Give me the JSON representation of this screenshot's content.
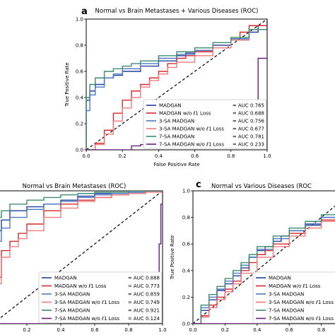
{
  "figure": {
    "panel_letters": [
      "a",
      "",
      "c"
    ]
  },
  "chart_data": [
    {
      "type": "line",
      "panel": "a",
      "title": "Normal vs Brain Metastases + Various Diseases (ROC)",
      "xlabel": "False Positive Rate",
      "ylabel": "True Positive Rate",
      "xlim": [
        0,
        1
      ],
      "ylim": [
        0,
        1
      ],
      "xticks": [
        "0.0",
        "0.2",
        "0.4",
        "0.6",
        "0.8",
        "1.0"
      ],
      "yticks": [
        "0.0",
        "0.2",
        "0.4",
        "0.6",
        "0.8",
        "1.0"
      ],
      "legend_position": "lower-right",
      "diagonal": true,
      "series": [
        {
          "name": "MADGAN",
          "auc": "= AUC 0.765",
          "color": "#1f3fa3",
          "x": [
            0,
            0,
            0.02,
            0.05,
            0.1,
            0.15,
            0.2,
            0.3,
            0.4,
            0.5,
            0.55,
            0.6,
            0.7,
            0.8,
            0.9,
            0.95,
            1.0
          ],
          "y": [
            0,
            0.38,
            0.45,
            0.5,
            0.55,
            0.57,
            0.6,
            0.64,
            0.68,
            0.72,
            0.74,
            0.76,
            0.8,
            0.84,
            0.9,
            0.95,
            1.0
          ]
        },
        {
          "name": "MADGAN w/o ℓ1 Loss",
          "auc": "= AUC 0.688",
          "color": "#d8282e",
          "x": [
            0,
            0.05,
            0.1,
            0.15,
            0.2,
            0.25,
            0.3,
            0.35,
            0.4,
            0.45,
            0.5,
            0.55,
            0.6,
            0.7,
            0.8,
            0.85,
            0.9,
            1.0
          ],
          "y": [
            0,
            0.05,
            0.15,
            0.28,
            0.38,
            0.45,
            0.5,
            0.55,
            0.6,
            0.66,
            0.7,
            0.72,
            0.75,
            0.8,
            0.85,
            0.9,
            0.95,
            1.0
          ]
        },
        {
          "name": "3-SA MADGAN",
          "auc": "= AUC 0.756",
          "color": "#4d78c4",
          "x": [
            0,
            0,
            0.02,
            0.05,
            0.1,
            0.15,
            0.2,
            0.3,
            0.4,
            0.5,
            0.6,
            0.7,
            0.8,
            0.9,
            1.0
          ],
          "y": [
            0,
            0.3,
            0.42,
            0.48,
            0.55,
            0.58,
            0.62,
            0.66,
            0.7,
            0.73,
            0.76,
            0.8,
            0.85,
            0.92,
            1.0
          ]
        },
        {
          "name": "3-SA MADGAN w/o ℓ1 Loss",
          "auc": "= AUC 0.677",
          "color": "#f07a7a",
          "x": [
            0,
            0.05,
            0.1,
            0.15,
            0.2,
            0.25,
            0.3,
            0.35,
            0.4,
            0.45,
            0.5,
            0.6,
            0.7,
            0.8,
            0.9,
            1.0
          ],
          "y": [
            0,
            0.04,
            0.12,
            0.22,
            0.32,
            0.4,
            0.48,
            0.53,
            0.58,
            0.63,
            0.67,
            0.72,
            0.78,
            0.84,
            0.92,
            1.0
          ]
        },
        {
          "name": "7-SA MADGAN",
          "auc": "= AUC 0.781",
          "color": "#3a8d6e",
          "x": [
            0,
            0,
            0.02,
            0.05,
            0.1,
            0.15,
            0.2,
            0.25,
            0.3,
            0.4,
            0.5,
            0.6,
            0.7,
            0.8,
            0.9,
            1.0
          ],
          "y": [
            0,
            0.4,
            0.5,
            0.55,
            0.6,
            0.62,
            0.64,
            0.66,
            0.68,
            0.72,
            0.75,
            0.78,
            0.82,
            0.86,
            0.92,
            1.0
          ]
        },
        {
          "name": "7-SA MADGAN w/o ℓ1 Loss",
          "auc": "= AUC 0.233",
          "color": "#6b1a86",
          "x": [
            0,
            0.2,
            0.25,
            0.3,
            0.5,
            0.6,
            0.7,
            0.8,
            0.85,
            0.9,
            0.92,
            0.95,
            1.0,
            1.0
          ],
          "y": [
            0,
            0,
            0.03,
            0.04,
            0.05,
            0.06,
            0.06,
            0.07,
            0.12,
            0.2,
            0.25,
            0.7,
            0.95,
            1.0
          ]
        }
      ]
    },
    {
      "type": "line",
      "panel": "",
      "title": "Normal vs Brain Metastases (ROC)",
      "xlabel": "",
      "ylabel": "",
      "xlim": [
        0,
        1
      ],
      "ylim": [
        0,
        1
      ],
      "xticks": [
        "0.2",
        "0.4",
        "0.6",
        "0.8",
        "1.0"
      ],
      "yticks": [],
      "legend_position": "lower-right",
      "diagonal": true,
      "series": [
        {
          "name": "MADGAN",
          "auc": "= AUC 0.888",
          "color": "#1f3fa3",
          "x": [
            0,
            0,
            0.05,
            0.1,
            0.2,
            0.3,
            0.4,
            0.5,
            0.6,
            0.7,
            0.8,
            0.9,
            1.0
          ],
          "y": [
            0,
            0.7,
            0.78,
            0.85,
            0.88,
            0.9,
            0.93,
            0.96,
            0.98,
            0.98,
            0.99,
            1.0,
            1.0
          ]
        },
        {
          "name": "MADGAN w/o ℓ1 Loss",
          "auc": "= AUC 0.773",
          "color": "#d8282e",
          "x": [
            0,
            0.02,
            0.05,
            0.1,
            0.15,
            0.2,
            0.3,
            0.4,
            0.5,
            0.6,
            0.7,
            0.8,
            0.9,
            1.0
          ],
          "y": [
            0,
            0.35,
            0.55,
            0.62,
            0.68,
            0.75,
            0.85,
            0.9,
            0.93,
            0.95,
            0.97,
            0.98,
            1.0,
            1.0
          ]
        },
        {
          "name": "3-SA MADGAN",
          "auc": "= AUC 0.859",
          "color": "#4d78c4",
          "x": [
            0,
            0,
            0.05,
            0.1,
            0.2,
            0.3,
            0.4,
            0.5,
            0.6,
            0.7,
            0.8,
            0.9,
            1.0
          ],
          "y": [
            0,
            0.62,
            0.72,
            0.8,
            0.86,
            0.9,
            0.92,
            0.95,
            0.97,
            0.98,
            0.99,
            1.0,
            1.0
          ]
        },
        {
          "name": "3-SA MADGAN w/o ℓ1 Loss",
          "auc": "= AUC 0.749",
          "color": "#f07a7a",
          "x": [
            0,
            0.02,
            0.05,
            0.1,
            0.15,
            0.2,
            0.3,
            0.4,
            0.5,
            0.6,
            0.7,
            0.8,
            0.9,
            1.0
          ],
          "y": [
            0,
            0.3,
            0.5,
            0.58,
            0.64,
            0.7,
            0.8,
            0.87,
            0.92,
            0.95,
            0.97,
            0.98,
            0.99,
            1.0
          ]
        },
        {
          "name": "7-SA MADGAN",
          "auc": "= AUC 0.921",
          "color": "#3a8d6e",
          "x": [
            0,
            0,
            0.05,
            0.1,
            0.2,
            0.3,
            0.4,
            0.5,
            0.6,
            0.7,
            0.8,
            0.9,
            1.0
          ],
          "y": [
            0,
            0.8,
            0.85,
            0.9,
            0.93,
            0.95,
            0.97,
            0.98,
            0.99,
            0.99,
            1.0,
            1.0,
            1.0
          ]
        },
        {
          "name": "7-SA MADGAN w/o ℓ1 Loss",
          "auc": "= AUC 0.124",
          "color": "#6b1a86",
          "x": [
            0,
            0.3,
            0.5,
            0.7,
            0.8,
            0.9,
            0.95,
            0.97,
            0.98,
            0.99,
            1.0
          ],
          "y": [
            0,
            0.02,
            0.03,
            0.04,
            0.05,
            0.06,
            0.08,
            0.2,
            0.6,
            0.9,
            1.0
          ]
        }
      ]
    },
    {
      "type": "line",
      "panel": "c",
      "title": "Normal vs Various Diseases (ROC",
      "xlabel": "",
      "ylabel": "True Positive Rate",
      "xlim": [
        0,
        1
      ],
      "ylim": [
        0,
        1
      ],
      "xticks": [
        "0.0",
        "0.2",
        "0.4",
        "0.6",
        "0.8"
      ],
      "yticks": [
        "0.0",
        "0.2",
        "0.4",
        "0.6",
        "0.8",
        "1.0"
      ],
      "legend_position": "lower-right",
      "diagonal": true,
      "series": [
        {
          "name": "MADGAN",
          "auc": "",
          "color": "#1f3fa3",
          "x": [
            0,
            0.05,
            0.1,
            0.15,
            0.2,
            0.25,
            0.3,
            0.35,
            0.4,
            0.45,
            0.5,
            0.55,
            0.6,
            0.7,
            0.8,
            0.9,
            1.0
          ],
          "y": [
            0,
            0.1,
            0.18,
            0.25,
            0.3,
            0.36,
            0.42,
            0.5,
            0.55,
            0.58,
            0.62,
            0.66,
            0.7,
            0.75,
            0.8,
            0.84,
            0.86
          ]
        },
        {
          "name": "MADGAN w/o ℓ1 Loss",
          "auc": "",
          "color": "#d8282e",
          "x": [
            0,
            0.05,
            0.1,
            0.15,
            0.2,
            0.25,
            0.3,
            0.35,
            0.4,
            0.45,
            0.5,
            0.6,
            0.7,
            0.8,
            0.9,
            1.0
          ],
          "y": [
            0,
            0.06,
            0.14,
            0.2,
            0.26,
            0.32,
            0.4,
            0.46,
            0.52,
            0.55,
            0.6,
            0.68,
            0.74,
            0.78,
            0.82,
            0.85
          ]
        },
        {
          "name": "3-SA MADGAN",
          "auc": "",
          "color": "#4d78c4",
          "x": [
            0,
            0.05,
            0.1,
            0.15,
            0.2,
            0.25,
            0.3,
            0.35,
            0.4,
            0.5,
            0.6,
            0.7,
            0.8,
            0.9,
            1.0
          ],
          "y": [
            0,
            0.12,
            0.2,
            0.26,
            0.32,
            0.38,
            0.44,
            0.5,
            0.56,
            0.64,
            0.7,
            0.74,
            0.8,
            0.84,
            0.87
          ]
        },
        {
          "name": "3-SA MADGAN w/o ℓ1 Loss",
          "auc": "",
          "color": "#f07a7a",
          "x": [
            0,
            0.05,
            0.1,
            0.15,
            0.2,
            0.25,
            0.3,
            0.4,
            0.5,
            0.6,
            0.7,
            0.8,
            0.9,
            1.0
          ],
          "y": [
            0,
            0.05,
            0.12,
            0.18,
            0.24,
            0.3,
            0.38,
            0.5,
            0.58,
            0.66,
            0.72,
            0.77,
            0.81,
            0.84
          ]
        },
        {
          "name": "7-SA MADGAN",
          "auc": "",
          "color": "#3a8d6e",
          "x": [
            0,
            0.05,
            0.1,
            0.15,
            0.2,
            0.25,
            0.3,
            0.35,
            0.4,
            0.5,
            0.6,
            0.7,
            0.8,
            0.9,
            1.0
          ],
          "y": [
            0,
            0.14,
            0.22,
            0.28,
            0.34,
            0.4,
            0.46,
            0.52,
            0.58,
            0.66,
            0.72,
            0.77,
            0.82,
            0.86,
            0.88
          ]
        },
        {
          "name": "7-SA MADGAN w/o ℓ1 Loss",
          "auc": "",
          "color": "#6b1a86",
          "x": [
            0,
            0.4,
            0.5,
            0.55,
            0.6,
            0.65,
            0.7,
            0.8,
            0.9,
            1.0
          ],
          "y": [
            0,
            0.0,
            0.02,
            0.04,
            0.08,
            0.12,
            0.18,
            0.35,
            0.55,
            0.7
          ]
        }
      ]
    }
  ]
}
